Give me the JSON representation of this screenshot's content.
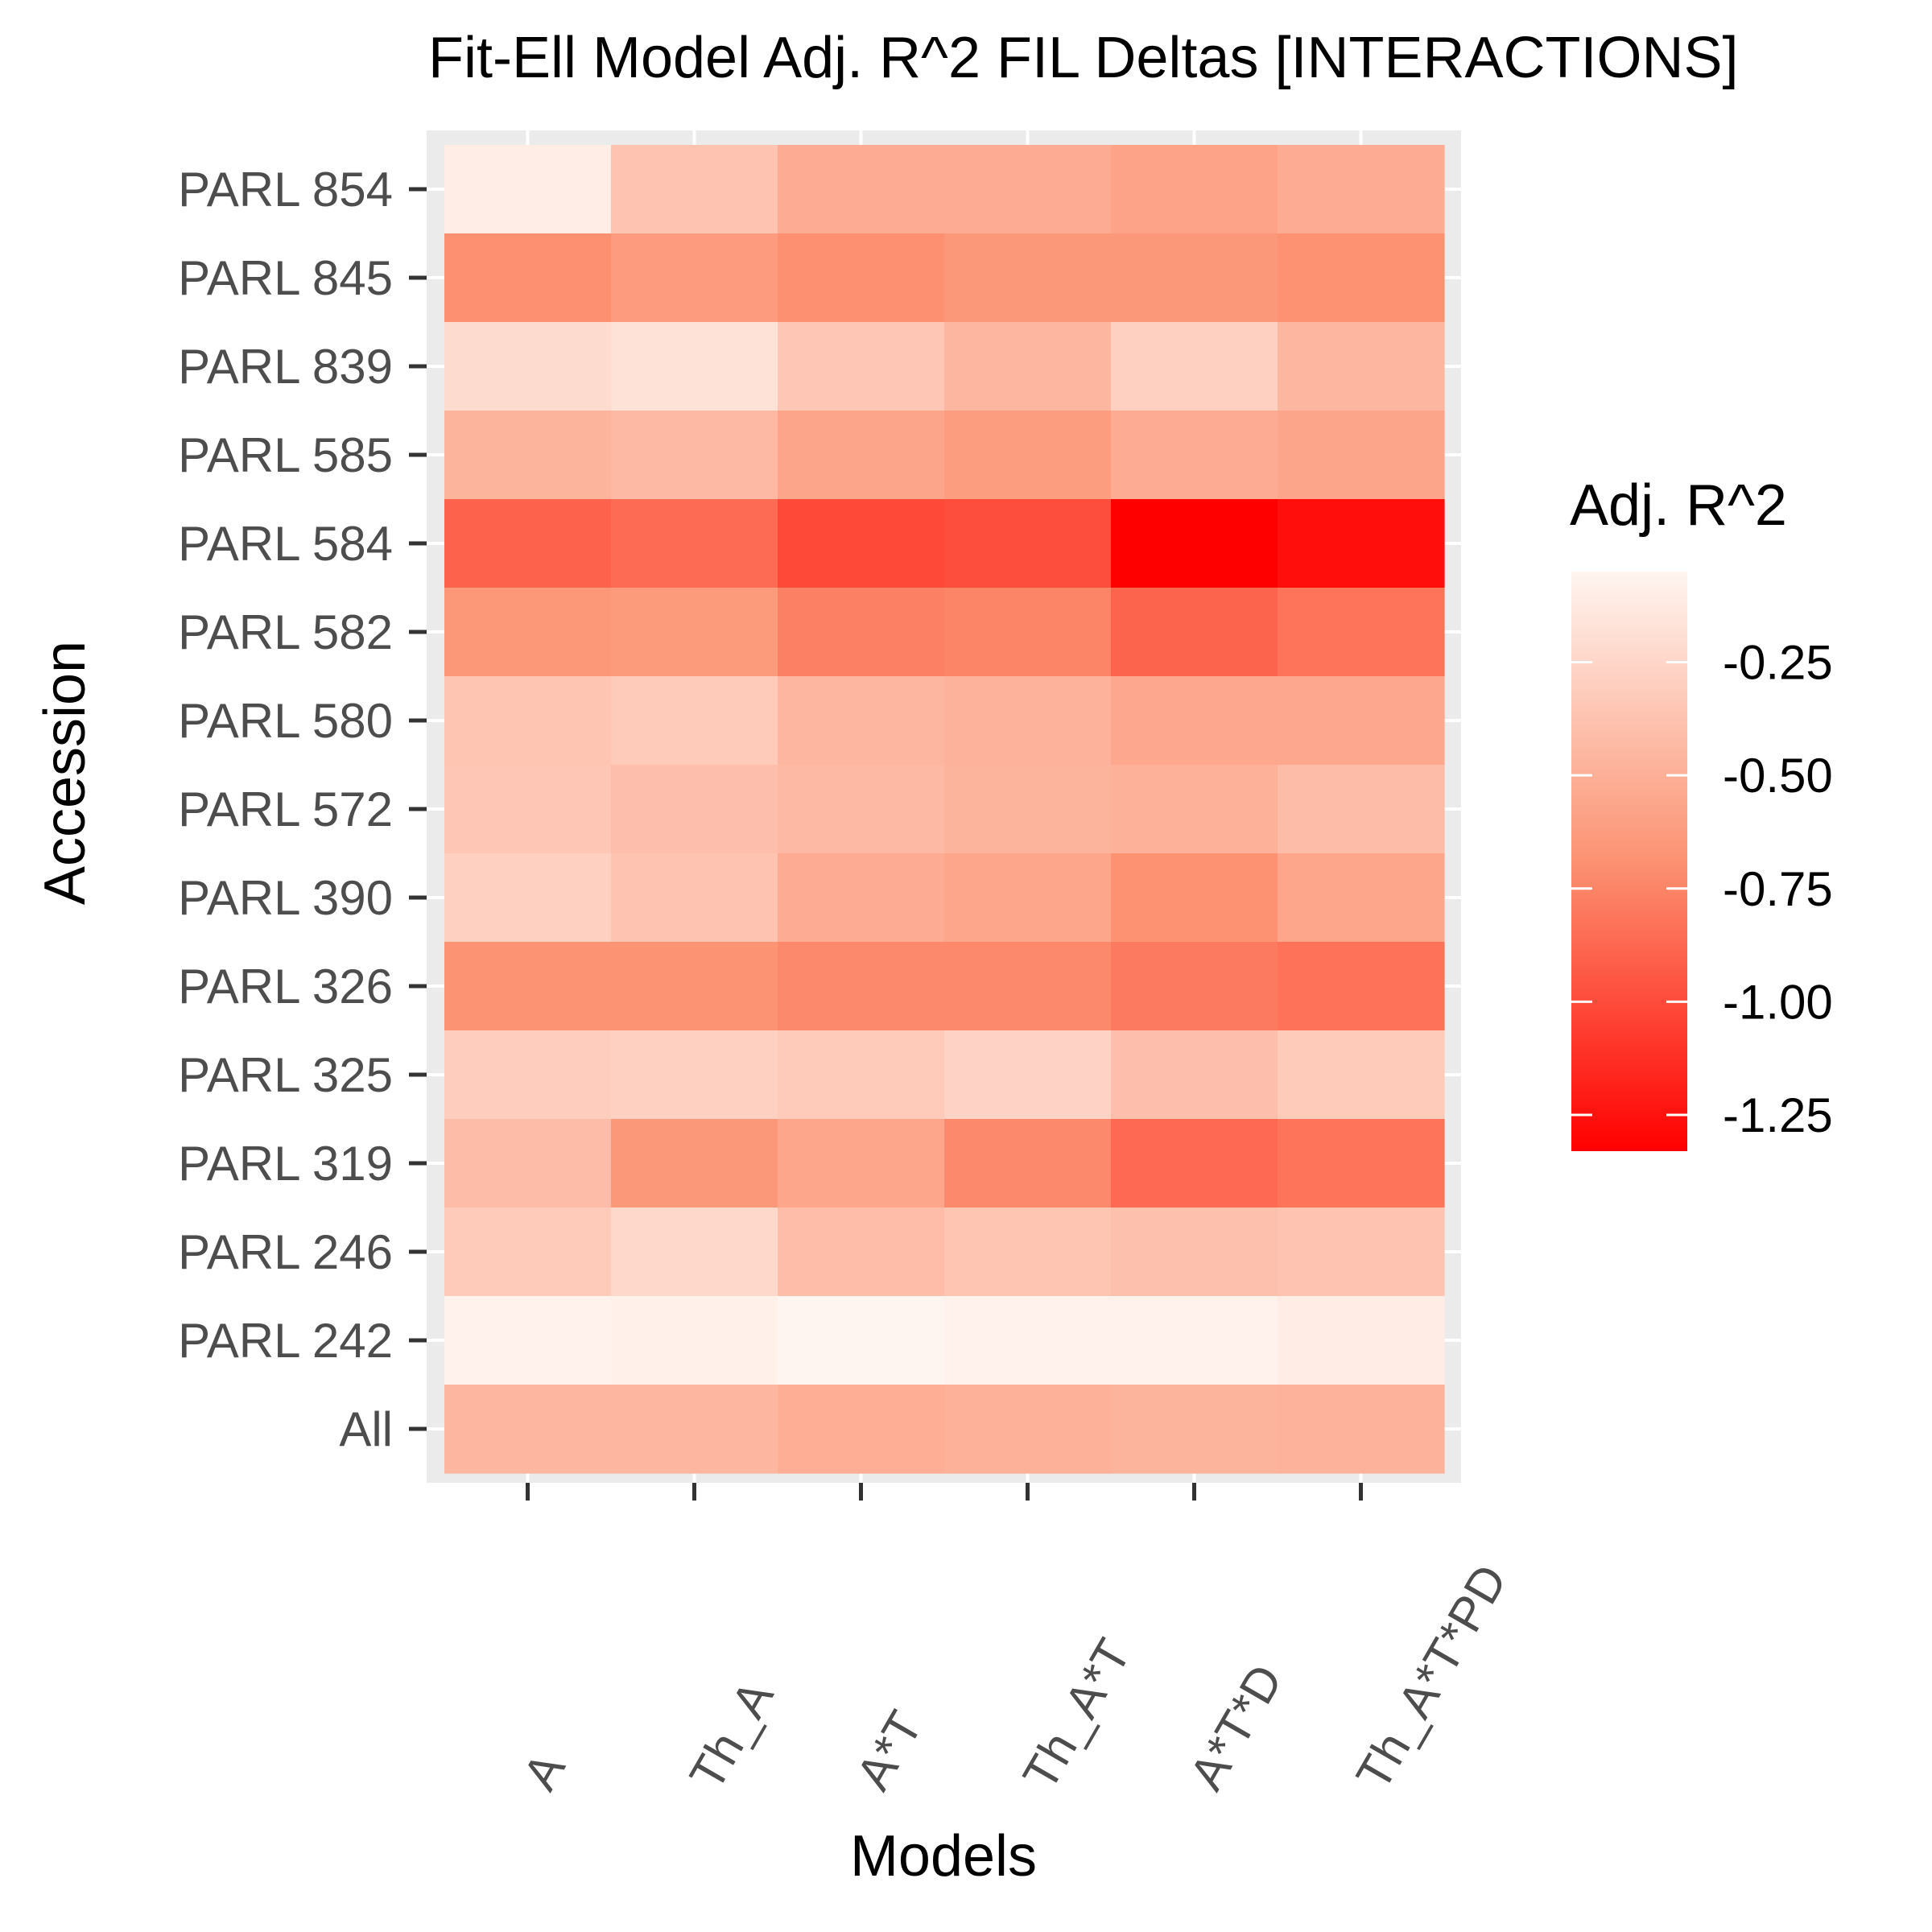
{
  "chart_data": {
    "type": "heatmap",
    "title": "Fit-Ell Model Adj. R^2 FIL Deltas [INTERACTIONS]",
    "xlabel": "Models",
    "ylabel": "Accession",
    "x_categories": [
      "A",
      "Th_A",
      "A*T",
      "Th_A*T",
      "A*T*D",
      "Th_A*T*PD"
    ],
    "y_categories": [
      "PARL 854",
      "PARL 845",
      "PARL 839",
      "PARL 585",
      "PARL 584",
      "PARL 582",
      "PARL 580",
      "PARL 572",
      "PARL 390",
      "PARL 326",
      "PARL 325",
      "PARL 319",
      "PARL 246",
      "PARL 242",
      "All"
    ],
    "values": [
      [
        -0.1,
        -0.37,
        -0.53,
        -0.53,
        -0.58,
        -0.52
      ],
      [
        -0.7,
        -0.63,
        -0.7,
        -0.65,
        -0.65,
        -0.69
      ],
      [
        -0.22,
        -0.17,
        -0.35,
        -0.45,
        -0.29,
        -0.45
      ],
      [
        -0.47,
        -0.44,
        -0.57,
        -0.62,
        -0.53,
        -0.57
      ],
      [
        -0.9,
        -0.86,
        -1.01,
        -0.99,
        -1.33,
        -1.27
      ],
      [
        -0.66,
        -0.64,
        -0.77,
        -0.75,
        -0.89,
        -0.82
      ],
      [
        -0.36,
        -0.33,
        -0.46,
        -0.48,
        -0.55,
        -0.55
      ],
      [
        -0.35,
        -0.4,
        -0.44,
        -0.47,
        -0.49,
        -0.42
      ],
      [
        -0.29,
        -0.37,
        -0.52,
        -0.56,
        -0.69,
        -0.56
      ],
      [
        -0.68,
        -0.68,
        -0.73,
        -0.73,
        -0.79,
        -0.83
      ],
      [
        -0.31,
        -0.29,
        -0.32,
        -0.27,
        -0.4,
        -0.32
      ],
      [
        -0.42,
        -0.65,
        -0.56,
        -0.73,
        -0.87,
        -0.82
      ],
      [
        -0.33,
        -0.24,
        -0.41,
        -0.36,
        -0.39,
        -0.37
      ],
      [
        -0.07,
        -0.08,
        -0.05,
        -0.07,
        -0.07,
        -0.11
      ],
      [
        -0.46,
        -0.46,
        -0.51,
        -0.49,
        -0.47,
        -0.48
      ]
    ],
    "colorbar": {
      "title": "Adj. R^2",
      "min": -1.33,
      "max": -0.05,
      "low_color": "#ff0000",
      "high_color": "#fff5f0",
      "ticks": [
        -0.25,
        -0.5,
        -0.75,
        -1.0,
        -1.25
      ],
      "tick_labels": [
        "-0.25",
        "-0.50",
        "-0.75",
        "-1.00",
        "-1.25"
      ]
    }
  }
}
